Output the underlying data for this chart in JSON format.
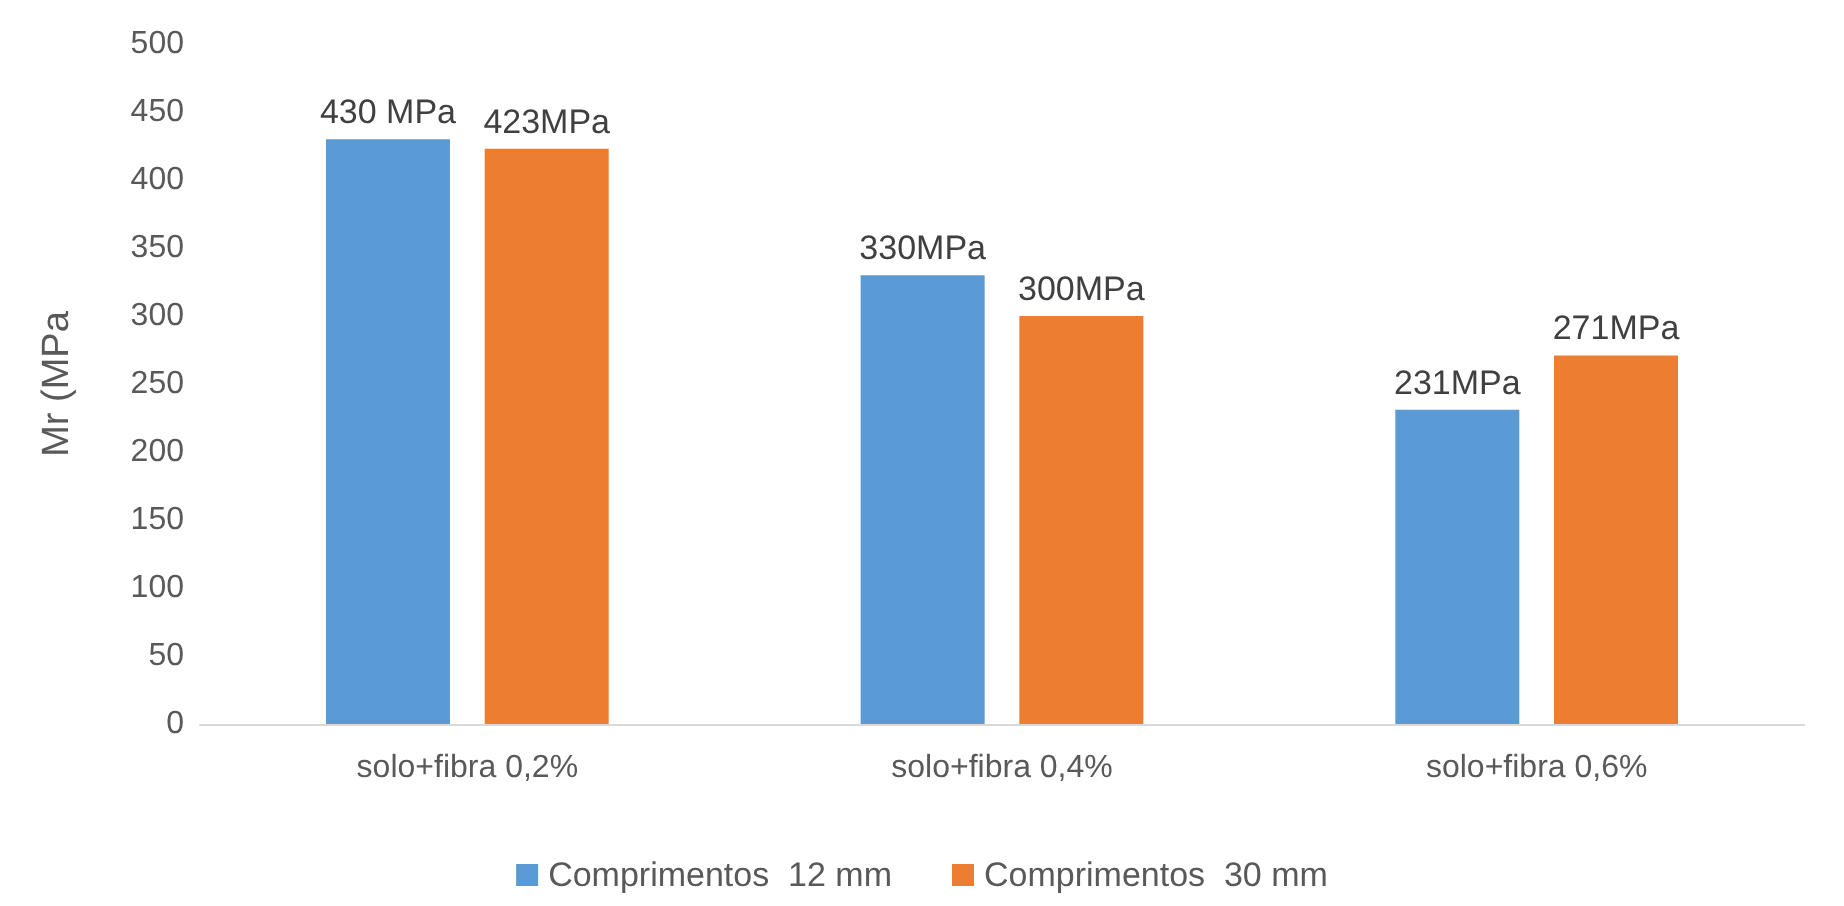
{
  "chart_data": {
    "type": "bar",
    "ylabel": "Mr (MPa",
    "categories": [
      "solo+fibra 0,2%",
      "solo+fibra 0,4%",
      "solo+fibra 0,6%"
    ],
    "series": [
      {
        "name": "Comprimentos  12 mm",
        "color": "#5b9bd5",
        "values": [
          430,
          330,
          231
        ],
        "value_labels": [
          "430 MPa",
          "330MPa",
          "231MPa"
        ]
      },
      {
        "name": "Comprimentos  30 mm",
        "color": "#ed7d31",
        "values": [
          423,
          300,
          271
        ],
        "value_labels": [
          "423MPa",
          "300MPa",
          "271MPa"
        ]
      }
    ],
    "ylim": [
      0,
      500
    ],
    "yticks": [
      0,
      50,
      100,
      150,
      200,
      250,
      300,
      350,
      400,
      450,
      500
    ],
    "grid": false,
    "legend": "bottom"
  }
}
